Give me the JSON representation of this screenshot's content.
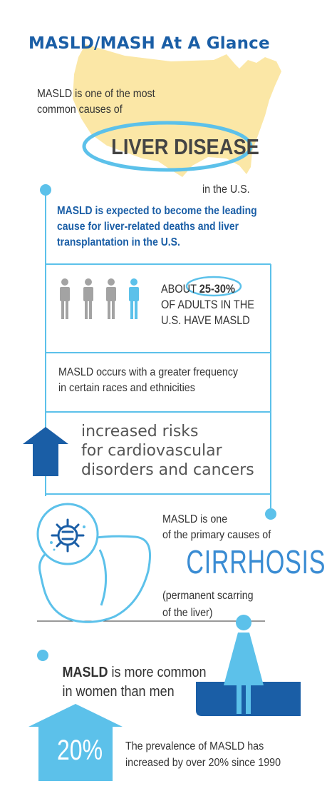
{
  "title": "MASLD/MASH At A Glance",
  "intro": {
    "line1": "MASLD is one of the most",
    "line2": "common causes of"
  },
  "highlight": "LIVER DISEASE",
  "location": "in the U.S.",
  "statement": "MASLD is expected to become the leading cause for liver-related deaths and liver transplantation in the U.S.",
  "adults": {
    "prefix": "ABOUT",
    "percent": "25-30%",
    "line2": "OF ADULTS IN THE",
    "line3": "U.S. HAVE MASLD",
    "figures_highlighted": 1,
    "figures_total": 4
  },
  "races": {
    "line1": "MASLD occurs with a greater frequency",
    "line2": "in certain races and ethnicities"
  },
  "risks": {
    "line1": "increased risks",
    "line2": "for cardiovascular",
    "line3": "disorders and cancers"
  },
  "cirrhosis": {
    "line1": "MASLD is one",
    "line2": "of the primary causes of",
    "word": "CIRRHOSIS",
    "line3": "(permanent scarring",
    "line4": "of the liver)"
  },
  "women": {
    "bold": "MASLD",
    "rest1": " is more common",
    "line2": "in women than men"
  },
  "prevalence": {
    "badge": "20%",
    "line1": "The prevalence of MASLD has",
    "line2": "increased by over 20% since 1990"
  },
  "colors": {
    "dark_blue": "#1a5ea6",
    "light_blue": "#5cc1ea",
    "map_yellow": "#fbe7a6",
    "gray_figure": "#a3a3a3"
  }
}
